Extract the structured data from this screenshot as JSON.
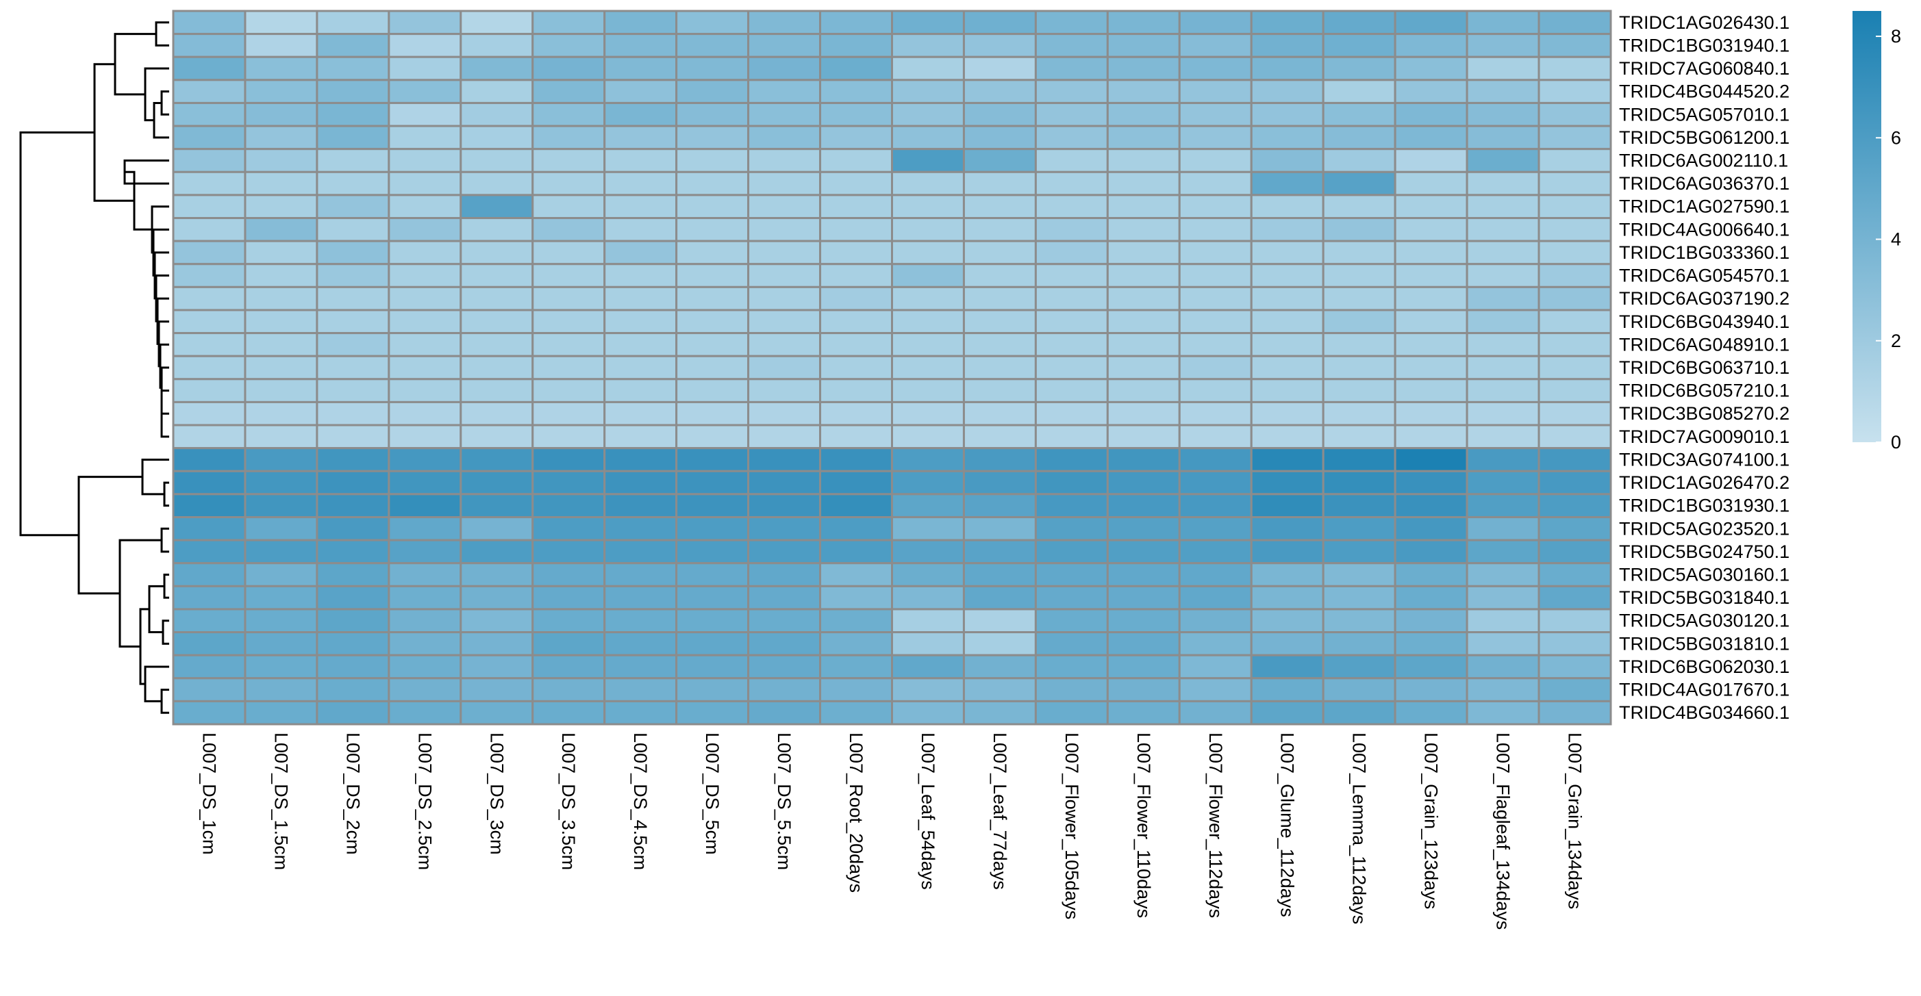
{
  "chart_data": {
    "type": "heatmap",
    "rows": [
      "TRIDC1AG026430.1",
      "TRIDC1BG031940.1",
      "TRIDC7AG060840.1",
      "TRIDC4BG044520.2",
      "TRIDC5AG057010.1",
      "TRIDC5BG061200.1",
      "TRIDC6AG002110.1",
      "TRIDC6AG036370.1",
      "TRIDC1AG027590.1",
      "TRIDC4AG006640.1",
      "TRIDC1BG033360.1",
      "TRIDC6AG054570.1",
      "TRIDC6AG037190.2",
      "TRIDC6BG043940.1",
      "TRIDC6AG048910.1",
      "TRIDC6BG063710.1",
      "TRIDC6BG057210.1",
      "TRIDC3BG085270.2",
      "TRIDC7AG009010.1",
      "TRIDC3AG074100.1",
      "TRIDC1AG026470.2",
      "TRIDC1BG031930.1",
      "TRIDC5AG023520.1",
      "TRIDC5BG024750.1",
      "TRIDC5AG030160.1",
      "TRIDC5BG031840.1",
      "TRIDC5AG030120.1",
      "TRIDC5BG031810.1",
      "TRIDC6BG062030.1",
      "TRIDC4AG017670.1",
      "TRIDC4BG034660.1"
    ],
    "columns": [
      "L007_DS_1cm",
      "L007_DS_1.5cm",
      "L007_DS_2cm",
      "L007_DS_2.5cm",
      "L007_DS_3cm",
      "L007_DS_3.5cm",
      "L007_DS_4.5cm",
      "L007_DS_5cm",
      "L007_DS_5.5cm",
      "L007_Root_20days",
      "L007_Leaf_54days",
      "L007_Leaf_77days",
      "L007_Flower_105days",
      "L007_Flower_110days",
      "L007_Flower_112days",
      "L007_Glume_112days",
      "L007_Lemma_112days",
      "L007_Grain_123days",
      "L007_Flagleaf_134days",
      "L007_Grain_134days"
    ],
    "values": [
      [
        3.3,
        1.0,
        1.6,
        2.5,
        1.0,
        3.0,
        3.8,
        3.0,
        3.5,
        3.7,
        4.3,
        4.3,
        3.8,
        3.8,
        4.0,
        4.5,
        4.8,
        5.0,
        3.8,
        4.2
      ],
      [
        3.3,
        1.2,
        3.5,
        1.2,
        1.6,
        3.0,
        3.5,
        3.5,
        3.5,
        3.8,
        2.5,
        2.6,
        3.5,
        3.5,
        3.2,
        4.2,
        4.3,
        3.6,
        3.2,
        3.5
      ],
      [
        4.4,
        3.0,
        3.0,
        1.6,
        3.5,
        4.0,
        3.5,
        3.5,
        4.0,
        4.5,
        1.5,
        1.2,
        3.5,
        3.5,
        3.6,
        3.8,
        3.5,
        3.0,
        1.5,
        1.5
      ],
      [
        2.5,
        3.0,
        3.5,
        3.0,
        1.5,
        3.5,
        2.8,
        3.5,
        3.0,
        3.0,
        2.5,
        2.5,
        2.5,
        2.5,
        2.5,
        2.5,
        1.5,
        2.5,
        2.5,
        1.6
      ],
      [
        3.0,
        3.2,
        3.8,
        1.2,
        1.8,
        3.0,
        3.8,
        3.2,
        3.0,
        3.0,
        2.5,
        3.2,
        2.5,
        2.8,
        2.5,
        2.6,
        3.0,
        3.6,
        3.2,
        2.5
      ],
      [
        3.5,
        2.5,
        3.8,
        1.5,
        1.6,
        2.7,
        2.5,
        2.5,
        3.0,
        2.5,
        2.8,
        3.3,
        2.5,
        2.8,
        2.5,
        3.0,
        3.2,
        3.6,
        3.2,
        2.5
      ],
      [
        2.5,
        2.0,
        1.5,
        1.5,
        1.5,
        1.5,
        1.5,
        1.5,
        1.5,
        1.5,
        6.0,
        4.5,
        1.5,
        1.5,
        1.5,
        3.2,
        2.0,
        1.2,
        4.5,
        1.5
      ],
      [
        1.5,
        1.5,
        1.5,
        1.5,
        1.5,
        1.5,
        1.5,
        1.5,
        1.5,
        1.5,
        1.5,
        1.5,
        1.5,
        1.5,
        1.5,
        5.0,
        5.5,
        1.5,
        1.5,
        1.5
      ],
      [
        1.5,
        1.5,
        2.5,
        1.5,
        5.5,
        1.5,
        1.5,
        1.5,
        1.5,
        1.5,
        1.5,
        1.5,
        1.5,
        1.5,
        1.5,
        1.5,
        1.5,
        1.5,
        1.5,
        1.5
      ],
      [
        1.5,
        3.2,
        1.5,
        2.5,
        1.5,
        2.5,
        1.5,
        1.5,
        1.5,
        1.5,
        1.5,
        1.5,
        2.0,
        1.5,
        1.5,
        2.0,
        2.5,
        1.5,
        1.5,
        1.5
      ],
      [
        2.5,
        1.5,
        2.8,
        1.5,
        1.5,
        1.5,
        2.5,
        1.5,
        1.5,
        1.5,
        1.5,
        1.5,
        2.0,
        1.5,
        1.5,
        1.5,
        1.5,
        1.5,
        1.5,
        1.5
      ],
      [
        2.2,
        1.5,
        2.2,
        1.5,
        1.5,
        1.5,
        1.5,
        1.5,
        1.5,
        1.5,
        2.8,
        1.5,
        1.5,
        1.5,
        1.5,
        1.5,
        1.5,
        1.5,
        1.5,
        2.0
      ],
      [
        1.5,
        1.5,
        1.5,
        1.5,
        1.5,
        1.5,
        1.5,
        1.5,
        1.5,
        1.8,
        1.5,
        1.5,
        1.5,
        1.5,
        1.5,
        1.5,
        1.5,
        1.5,
        2.5,
        2.5
      ],
      [
        1.5,
        1.5,
        1.5,
        1.5,
        1.5,
        1.5,
        1.5,
        1.5,
        1.5,
        1.5,
        1.5,
        1.5,
        1.5,
        1.5,
        1.5,
        1.5,
        2.2,
        1.5,
        2.2,
        1.5
      ],
      [
        1.5,
        1.5,
        2.0,
        1.5,
        1.5,
        1.5,
        1.5,
        1.5,
        1.5,
        1.5,
        1.5,
        1.5,
        1.5,
        1.5,
        1.5,
        1.5,
        1.5,
        1.5,
        1.5,
        1.5
      ],
      [
        1.5,
        1.5,
        1.5,
        1.5,
        1.5,
        1.5,
        1.5,
        1.5,
        1.8,
        1.5,
        1.5,
        1.5,
        1.5,
        1.5,
        1.8,
        1.5,
        1.5,
        1.5,
        1.5,
        1.5
      ],
      [
        1.5,
        1.5,
        1.5,
        1.5,
        1.5,
        1.5,
        1.5,
        1.5,
        1.5,
        1.5,
        1.5,
        1.5,
        1.5,
        1.5,
        1.5,
        1.5,
        1.5,
        1.5,
        1.5,
        1.5
      ],
      [
        1.2,
        1.2,
        1.2,
        1.2,
        1.2,
        1.2,
        1.2,
        1.2,
        1.2,
        1.2,
        1.2,
        1.2,
        1.2,
        1.2,
        1.2,
        1.2,
        1.2,
        1.2,
        1.2,
        1.2
      ],
      [
        1.1,
        1.1,
        1.1,
        1.1,
        1.1,
        1.1,
        1.1,
        1.1,
        1.1,
        1.1,
        1.1,
        1.1,
        1.1,
        1.1,
        1.1,
        1.1,
        1.1,
        1.1,
        1.1,
        1.1
      ],
      [
        7.0,
        6.2,
        6.6,
        6.4,
        6.5,
        7.0,
        7.0,
        7.0,
        7.0,
        7.0,
        6.0,
        6.2,
        6.7,
        6.6,
        6.4,
        7.8,
        7.8,
        8.4,
        6.2,
        6.4
      ],
      [
        7.0,
        6.5,
        6.8,
        6.6,
        6.6,
        6.6,
        6.8,
        6.8,
        6.8,
        7.0,
        6.0,
        6.2,
        6.6,
        6.4,
        6.3,
        7.2,
        7.2,
        7.0,
        6.0,
        6.3
      ],
      [
        7.2,
        6.6,
        6.8,
        7.2,
        6.6,
        6.6,
        6.8,
        6.8,
        6.8,
        7.2,
        5.2,
        5.4,
        6.3,
        6.3,
        6.3,
        7.4,
        6.9,
        7.0,
        5.8,
        6.0
      ],
      [
        6.0,
        4.8,
        6.2,
        5.0,
        4.0,
        6.0,
        6.0,
        6.0,
        6.0,
        6.0,
        3.8,
        3.8,
        5.6,
        5.6,
        5.6,
        6.2,
        6.0,
        6.4,
        4.2,
        5.2
      ],
      [
        6.0,
        6.0,
        6.0,
        5.5,
        6.0,
        6.0,
        6.0,
        6.0,
        6.0,
        6.0,
        5.4,
        5.4,
        5.8,
        5.8,
        5.8,
        6.2,
        6.0,
        6.2,
        5.2,
        5.6
      ],
      [
        5.0,
        4.2,
        5.2,
        4.2,
        4.2,
        4.8,
        4.8,
        4.8,
        5.0,
        3.5,
        4.5,
        5.0,
        5.0,
        5.0,
        5.0,
        3.8,
        3.5,
        4.5,
        3.5,
        4.6
      ],
      [
        4.8,
        4.6,
        5.4,
        4.4,
        4.2,
        4.8,
        4.8,
        4.8,
        4.8,
        3.5,
        3.6,
        5.0,
        4.8,
        4.8,
        5.0,
        3.8,
        3.6,
        4.6,
        3.2,
        5.0
      ],
      [
        4.6,
        4.6,
        5.2,
        4.2,
        3.6,
        4.6,
        4.6,
        4.6,
        4.6,
        4.4,
        1.6,
        1.4,
        4.6,
        4.6,
        4.2,
        3.5,
        3.5,
        4.0,
        2.0,
        2.0
      ],
      [
        5.2,
        4.8,
        5.0,
        4.2,
        4.0,
        5.2,
        5.0,
        5.0,
        5.0,
        4.2,
        2.0,
        1.6,
        4.8,
        4.8,
        3.8,
        4.0,
        4.2,
        4.4,
        2.6,
        2.6
      ],
      [
        4.8,
        4.6,
        4.8,
        4.4,
        4.0,
        4.8,
        4.8,
        4.8,
        4.8,
        4.5,
        5.0,
        4.2,
        4.6,
        4.6,
        3.6,
        6.2,
        5.6,
        5.2,
        4.2,
        3.6
      ],
      [
        4.2,
        4.2,
        4.6,
        4.2,
        4.0,
        4.2,
        4.2,
        4.2,
        4.2,
        4.0,
        3.2,
        3.4,
        4.2,
        4.2,
        3.6,
        4.6,
        4.2,
        4.0,
        3.6,
        4.4
      ],
      [
        4.6,
        4.6,
        5.0,
        4.6,
        4.4,
        4.6,
        4.6,
        4.6,
        4.8,
        4.4,
        3.6,
        3.8,
        4.6,
        4.4,
        4.2,
        5.2,
        5.2,
        4.6,
        3.6,
        4.0
      ]
    ],
    "color_scale": {
      "min": 0,
      "max": 8.5,
      "low_color": "#c7e1ee",
      "high_color": "#1a80b2"
    },
    "legend_ticks": [
      0,
      2,
      4,
      6,
      8
    ],
    "legend_placement": "right",
    "row_dendrogram": true,
    "grid": true
  }
}
